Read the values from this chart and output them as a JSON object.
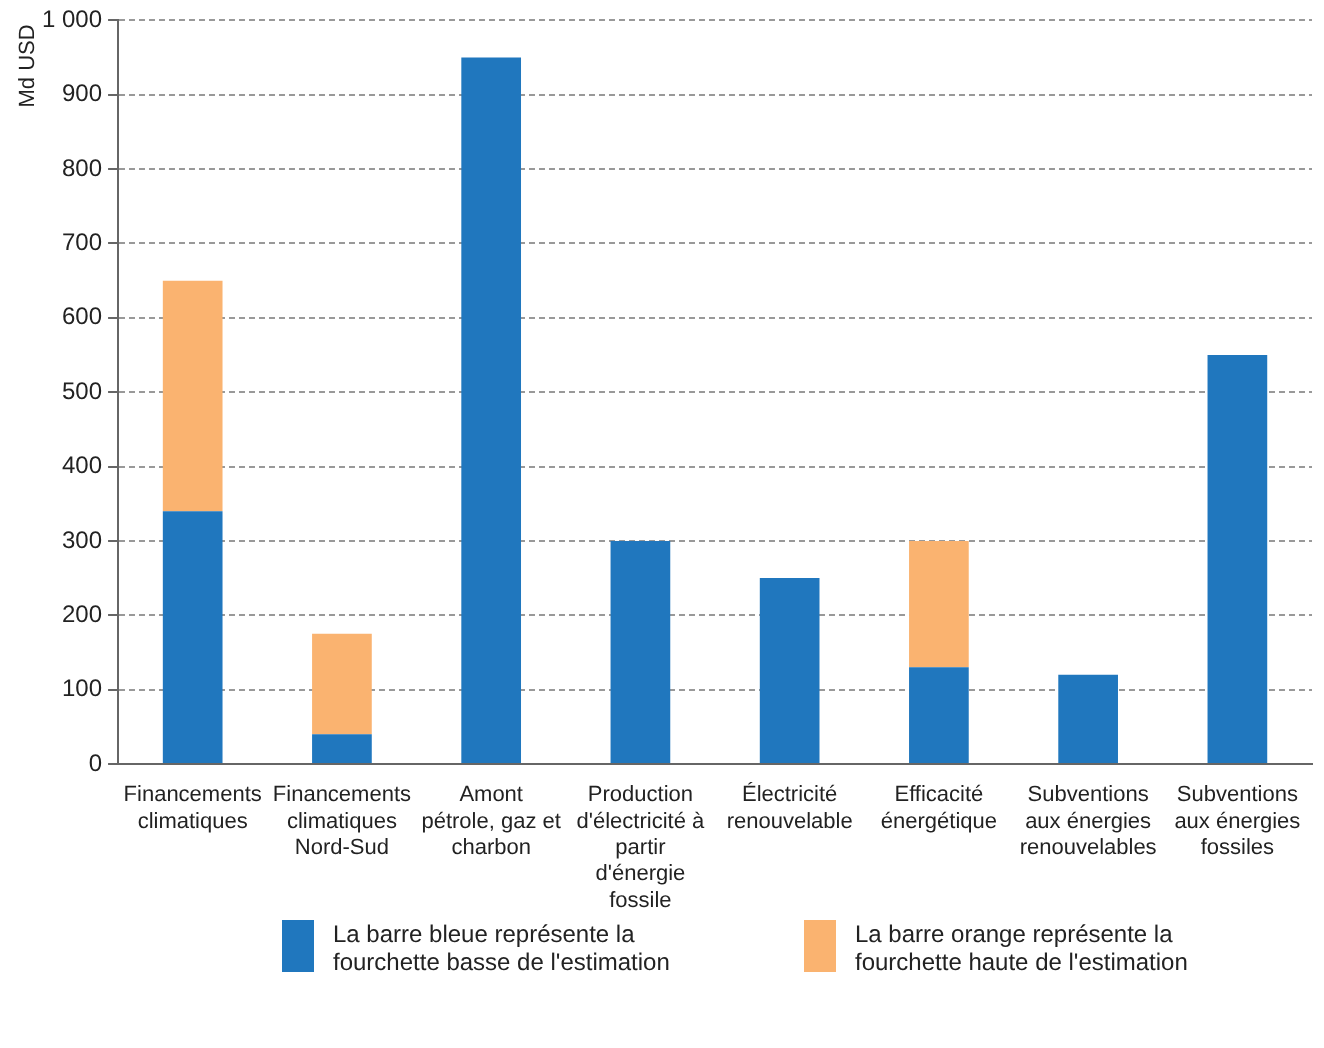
{
  "chart_data": {
    "type": "bar",
    "ylabel": "Md USD",
    "stacked": true,
    "categories": [
      "Financements climatiques",
      "Financements climatiques Nord-Sud",
      "Amont pétrole, gaz et charbon",
      "Production d'électricité à partir d'énergie fossile",
      "Électricité renouvelable",
      "Efficacité énergétique",
      "Subventions aux énergies renouvelables",
      "Subventions aux énergies fossiles"
    ],
    "series": [
      {
        "name": "La barre bleue représente la fourchette basse de l'estimation",
        "color": "#2077be",
        "values": [
          340,
          40,
          950,
          300,
          250,
          130,
          120,
          550
        ]
      },
      {
        "name": "La barre orange représente la fourchette haute de l'estimation",
        "color": "#fab370",
        "values": [
          310,
          135,
          null,
          null,
          null,
          170,
          null,
          null
        ]
      }
    ],
    "ylim": [
      0,
      1000
    ],
    "yticks": [
      0,
      100,
      200,
      300,
      400,
      500,
      600,
      700,
      800,
      {
        "value": 1000,
        "label": "1 000"
      },
      900
    ],
    "grid": "y",
    "legend": "bottom"
  }
}
